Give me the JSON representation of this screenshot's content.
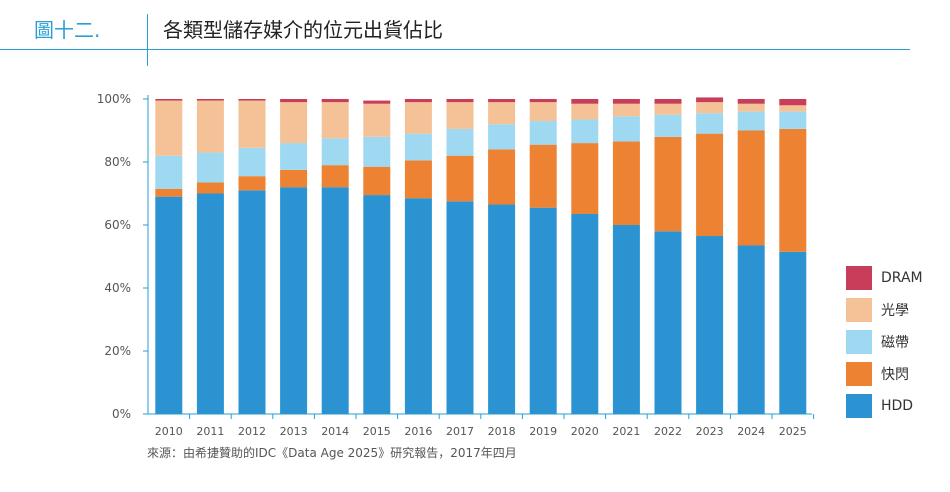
{
  "header": {
    "figure_label": "圖十二.",
    "title": "各類型儲存媒介的位元出貨佔比"
  },
  "source": "來源：由希捷贊助的IDC《Data Age 2025》研究報告，2017年四月",
  "chart_data": {
    "type": "bar",
    "stacked": true,
    "title": "各類型儲存媒介的位元出貨佔比",
    "categories": [
      "2010",
      "2011",
      "2012",
      "2013",
      "2014",
      "2015",
      "2016",
      "2017",
      "2018",
      "2019",
      "2020",
      "2021",
      "2022",
      "2023",
      "2024",
      "2025"
    ],
    "yticks": [
      "0%",
      "20%",
      "40%",
      "60%",
      "80%",
      "100%"
    ],
    "ylim": [
      0,
      100
    ],
    "grid": false,
    "legend_position": "right",
    "series": [
      {
        "name": "HDD",
        "color": "#2b93d1",
        "values": [
          69,
          70,
          71,
          72,
          72,
          69.5,
          68.5,
          67.5,
          66.5,
          65.5,
          63.5,
          60,
          58,
          56.5,
          53.5,
          51.5
        ]
      },
      {
        "name": "快閃",
        "color": "#ed8232",
        "values": [
          2.5,
          3.5,
          4.5,
          5.5,
          7,
          9,
          12,
          14.5,
          17.5,
          20,
          22.5,
          26.5,
          30,
          32.5,
          36.5,
          39
        ]
      },
      {
        "name": "磁帶",
        "color": "#9fd8f1",
        "values": [
          10.5,
          9.5,
          9,
          8.5,
          8.5,
          9.5,
          8.5,
          8.5,
          8,
          7.5,
          7.5,
          8,
          7,
          6.5,
          6,
          5.5
        ]
      },
      {
        "name": "光學",
        "color": "#f5c297",
        "values": [
          17.5,
          16.5,
          15,
          13,
          11.5,
          10.5,
          10,
          8.5,
          7,
          6,
          5,
          4,
          3.5,
          3.5,
          2.5,
          2
        ]
      },
      {
        "name": "DRAM",
        "color": "#c73d5a",
        "values": [
          0.5,
          0.5,
          0.5,
          1,
          1,
          1,
          1,
          1,
          1,
          1,
          1.5,
          1.5,
          1.5,
          1.5,
          1.5,
          2
        ]
      }
    ]
  }
}
